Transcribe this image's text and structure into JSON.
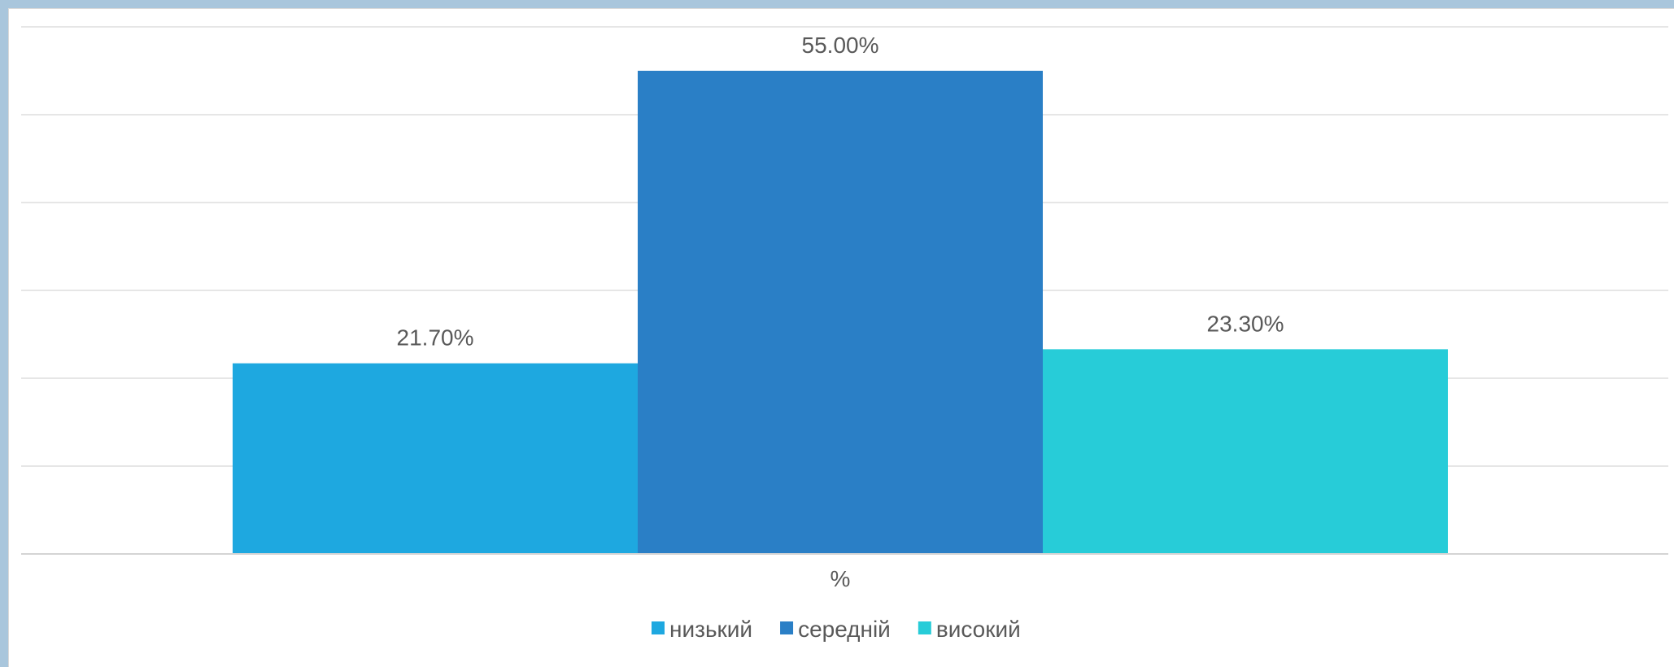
{
  "chart_data": {
    "type": "bar",
    "categories": [
      "%"
    ],
    "series": [
      {
        "name": "низький",
        "values": [
          21.7
        ],
        "label": "21.70%",
        "color": "#1ea8e0"
      },
      {
        "name": "середній",
        "values": [
          55.0
        ],
        "label": "55.00%",
        "color": "#2a7fc6"
      },
      {
        "name": "високий",
        "values": [
          23.3
        ],
        "label": "23.30%",
        "color": "#27ccd8"
      }
    ],
    "title": "",
    "xlabel": "",
    "ylabel": "",
    "ylim": [
      0,
      60
    ],
    "grid": true,
    "legend": "bottom"
  }
}
